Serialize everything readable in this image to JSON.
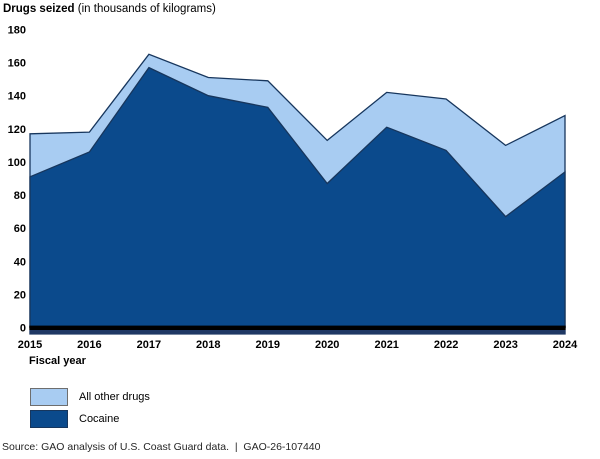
{
  "title": {
    "main": "Drugs seized",
    "unit": " (in thousands of kilograms)"
  },
  "chart_data": {
    "type": "area",
    "stacked": true,
    "title": "Drugs seized (in thousands of kilograms)",
    "x": [
      2015,
      2016,
      2017,
      2018,
      2019,
      2020,
      2021,
      2022,
      2023,
      2024
    ],
    "xlabel": "Fiscal year",
    "ylim": [
      0,
      180
    ],
    "yticks": [
      0,
      20,
      40,
      60,
      80,
      100,
      120,
      140,
      160,
      180
    ],
    "grid": false,
    "legend_position": "bottom-left",
    "series": [
      {
        "name": "Cocaine",
        "color": "#0B4A8C",
        "values": [
          91,
          106,
          157,
          140,
          133,
          87,
          121,
          107,
          67,
          94
        ]
      },
      {
        "name": "All other drugs",
        "color": "#A8CCF2",
        "values": [
          26,
          12,
          8,
          11,
          16,
          26,
          21,
          31,
          43,
          34
        ]
      }
    ],
    "stacked_totals": [
      117,
      118,
      165,
      151,
      149,
      113,
      142,
      138,
      110,
      128
    ]
  },
  "legend": {
    "items": [
      {
        "label": "All other drugs",
        "color": "#A8CCF2",
        "border": "#6E6E6E"
      },
      {
        "label": "Cocaine",
        "color": "#0B4A8C",
        "border": "#17365D"
      }
    ]
  },
  "source_line": "Source: GAO analysis of U.S. Coast Guard data.  |  GAO-26-107440",
  "colors": {
    "cocaine": "#0B4A8C",
    "all_other_drugs": "#A8CCF2",
    "area_outline": "#17365D",
    "axis_line_black": "#000000",
    "axis_bar_navy": "#1F3864",
    "text": "#000000"
  }
}
